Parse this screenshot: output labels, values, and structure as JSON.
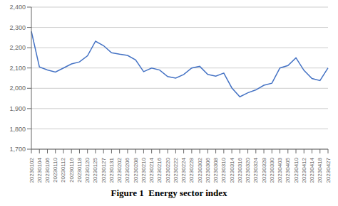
{
  "chart_data": {
    "type": "line",
    "title": "Figure 1  Energy sector index",
    "categories": [
      "20230102",
      "20230104",
      "20230106",
      "20230110",
      "20230112",
      "20230116",
      "20230118",
      "20230120",
      "20230125",
      "20230127",
      "20230131",
      "20230202",
      "20230206",
      "20230208",
      "20230210",
      "20230214",
      "20230216",
      "20230220",
      "20230222",
      "20230224",
      "20230228",
      "20230302",
      "20230306",
      "20230308",
      "20230310",
      "20230314",
      "20230316",
      "20230320",
      "20230324",
      "20230328",
      "20230330",
      "20230403",
      "20230405",
      "20230410",
      "20230412",
      "20230414",
      "20230418",
      "20230427"
    ],
    "values": [
      2280,
      2105,
      2090,
      2080,
      2100,
      2120,
      2130,
      2160,
      2232,
      2210,
      2175,
      2168,
      2162,
      2140,
      2082,
      2100,
      2090,
      2058,
      2050,
      2068,
      2100,
      2108,
      2068,
      2060,
      2075,
      2002,
      1958,
      1978,
      1992,
      2015,
      2025,
      2100,
      2112,
      2150,
      2088,
      2048,
      2038,
      2100
    ],
    "color": "#4472C4",
    "ylim": [
      1700,
      2400
    ],
    "yticks": [
      {
        "value": 1700,
        "label": "1,700"
      },
      {
        "value": 1800,
        "label": "1,800"
      },
      {
        "value": 1900,
        "label": "1,900"
      },
      {
        "value": 2000,
        "label": "2,000"
      },
      {
        "value": 2100,
        "label": "2,100"
      },
      {
        "value": 2200,
        "label": "2,200"
      },
      {
        "value": 2300,
        "label": "2,300"
      },
      {
        "value": 2400,
        "label": "2,400"
      }
    ],
    "grid": true
  }
}
